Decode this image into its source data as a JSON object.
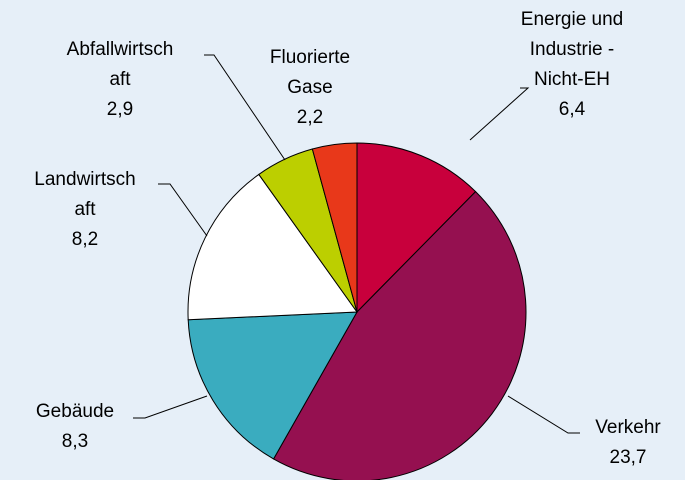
{
  "chart_data": {
    "type": "pie",
    "categories": [
      [
        "Energie und",
        "Industrie -",
        "Nicht-EH"
      ],
      [
        "Verkehr"
      ],
      [
        "Gebäude"
      ],
      [
        "Landwirtsch",
        "aft"
      ],
      [
        "Abfallwirtsch",
        "aft"
      ],
      [
        "Fluorierte",
        "Gase"
      ]
    ],
    "values": [
      6.4,
      23.7,
      8.3,
      8.2,
      2.9,
      2.2
    ],
    "value_labels": [
      "6,4",
      "23,7",
      "8,3",
      "8,2",
      "2,9",
      "2,2"
    ],
    "colors": [
      "#c8003c",
      "#951050",
      "#3aacbf",
      "#ffffff",
      "#bccf00",
      "#e8381a"
    ]
  }
}
